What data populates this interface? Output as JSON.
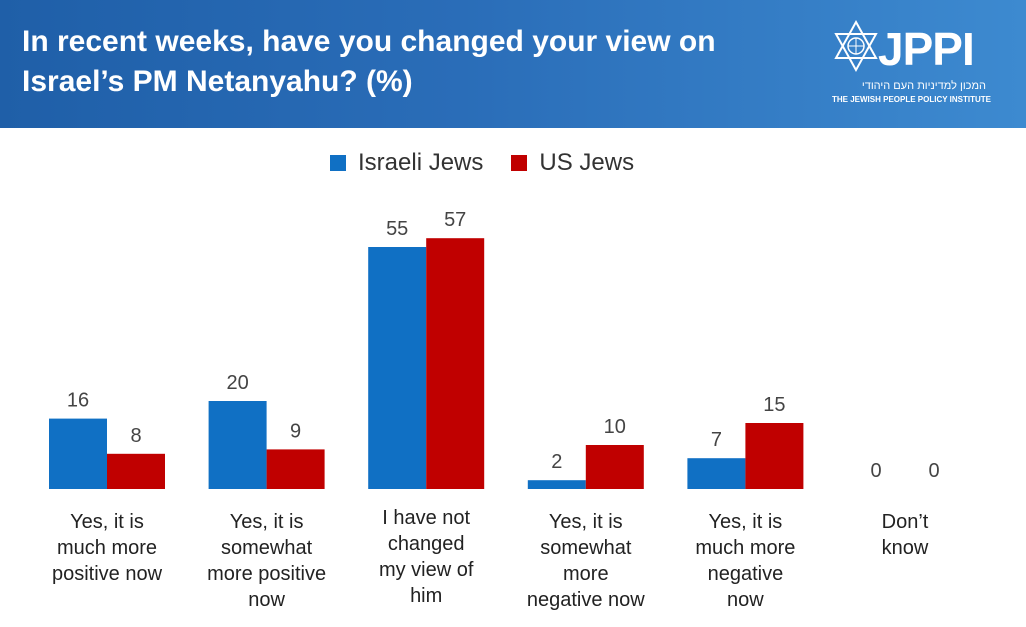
{
  "header": {
    "title_line1": "In recent weeks, have you changed your view on",
    "title_line2": "Israel’s PM Netanyahu?  (%)"
  },
  "logo": {
    "wordmark": "JPPI",
    "hebrew": "המכון למדיניות העם היהודי",
    "english": "THE JEWISH PEOPLE POLICY INSTITUTE",
    "icon": "star-of-david-icon"
  },
  "colors": {
    "header": "#2a6db8",
    "israeli": "#1070c4",
    "us": "#c00000"
  },
  "chart_data": {
    "type": "bar",
    "title": "In recent weeks, have you changed your view on Israel’s PM Netanyahu?  (%)",
    "categories": [
      [
        "Yes, it is",
        "much more",
        "positive now"
      ],
      [
        "Yes, it is",
        "somewhat",
        "more positive",
        "now"
      ],
      [
        "I have not",
        "changed",
        "my view of",
        "him"
      ],
      [
        "Yes, it is",
        "somewhat",
        "more",
        "negative now"
      ],
      [
        "Yes, it is",
        "much more",
        "negative",
        "now"
      ],
      [
        "Don’t",
        "know"
      ]
    ],
    "series": [
      {
        "name": "Israeli Jews",
        "color": "#1070c4",
        "values": [
          16,
          20,
          55,
          2,
          7,
          0
        ]
      },
      {
        "name": "US Jews",
        "color": "#c00000",
        "values": [
          8,
          9,
          57,
          10,
          15,
          0
        ]
      }
    ],
    "ylim": [
      0,
      60
    ],
    "legend": "top-center",
    "grid": false
  }
}
